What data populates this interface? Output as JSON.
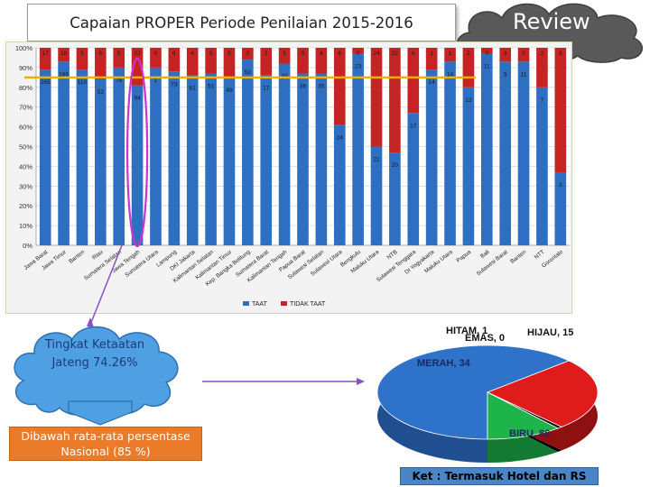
{
  "title": "Capaian PROPER Periode Penilaian 2015-2016",
  "review_label": "Review",
  "callout": {
    "tingkat_text": "Tingkat Ketaatan Jateng 74.26%",
    "below_text": "Dibawah rata-rata persentase Nasional (85 %)"
  },
  "note": "Ket : Termasuk Hotel dan RS",
  "colors": {
    "taat": "#2f6fc1",
    "tidak_taat": "#c62424",
    "reference_line": "#f0b000",
    "highlight_oval": "#cc33cc",
    "pie_biru": "#2f72c9",
    "pie_merah": "#e01b1b",
    "pie_hijau": "#1db44a",
    "pie_emas": "#8a8a8a",
    "pie_hitam": "#111111"
  },
  "chart_data": [
    {
      "type": "bar",
      "stacked": true,
      "percent_stacked": true,
      "title": "",
      "ylim": [
        0,
        100
      ],
      "y_ticks": [
        "0%",
        "10%",
        "20%",
        "30%",
        "40%",
        "50%",
        "60%",
        "70%",
        "80%",
        "90%",
        "100%"
      ],
      "reference_line_value": 85,
      "highlight_category_index": 5,
      "legend_position": "bottom",
      "categories": [
        "Jawa Barat",
        "Jawa Timur",
        "Banten",
        "Riau",
        "Sumatera Selatan",
        "Jawa Tengah",
        "Sumatera Utara",
        "Lampung",
        "DKI Jakarta",
        "Kalimantan Selatan",
        "Kalimantan Timur",
        "Kep. Bangka Belitung",
        "Sumatera Barat",
        "Kalimantan Tengah",
        "Papua Barat",
        "Sulawesi Selatan",
        "Sulawesi Utara",
        "Bengkulu",
        "Maluku Utara",
        "NTB",
        "Sulawesi Tenggara",
        "DI Yogyakarta",
        "Maluku Utara",
        "Papua",
        "Bali",
        "Sulawesi Barat",
        "Banten",
        "NTT",
        "Gorontalo"
      ],
      "series": [
        {
          "name": "TAAT",
          "values": [
            89,
            93,
            89,
            84,
            90,
            81,
            90,
            88,
            86,
            87,
            85,
            94,
            86,
            92,
            87,
            87,
            61,
            97,
            50,
            47,
            67,
            89,
            93,
            80,
            97,
            93,
            93,
            80,
            37
          ],
          "labels": [
            "265",
            "166",
            "110",
            "53",
            "76",
            "94",
            "1",
            "73",
            "61",
            "51",
            "49",
            "52",
            "17",
            "33",
            "36",
            "35",
            "24",
            "23",
            "21",
            "20",
            "17",
            "14",
            "14",
            "13",
            "11",
            "5",
            "11",
            "7",
            "3"
          ]
        },
        {
          "name": "TIDAK TAAT",
          "values": [
            11,
            7,
            11,
            16,
            10,
            19,
            10,
            12,
            14,
            13,
            15,
            6,
            14,
            8,
            13,
            13,
            39,
            3,
            50,
            53,
            33,
            11,
            7,
            20,
            3,
            7,
            7,
            20,
            63
          ],
          "labels": [
            "17",
            "18",
            "5",
            "6",
            "5",
            "22",
            "0",
            "6",
            "4",
            "3",
            "5",
            "2",
            "2",
            "5",
            "5",
            "4",
            "6",
            "0",
            "24",
            "22",
            "6",
            "1",
            "1",
            "2",
            "0",
            "3",
            "0",
            "2",
            "3"
          ]
        }
      ],
      "legend": [
        "TAAT",
        "TIDAK TAAT"
      ]
    },
    {
      "type": "pie",
      "title": "",
      "slices": [
        {
          "label": "BIRU",
          "value": 86,
          "display": "BIRU, 86"
        },
        {
          "label": "MERAH",
          "value": 34,
          "display": "MERAH, 34"
        },
        {
          "label": "HITAM",
          "value": 1,
          "display": "HITAM, 1"
        },
        {
          "label": "EMAS",
          "value": 0,
          "display": "EMAS, 0"
        },
        {
          "label": "HIJAU",
          "value": 15,
          "display": "HIJAU, 15"
        }
      ]
    }
  ]
}
